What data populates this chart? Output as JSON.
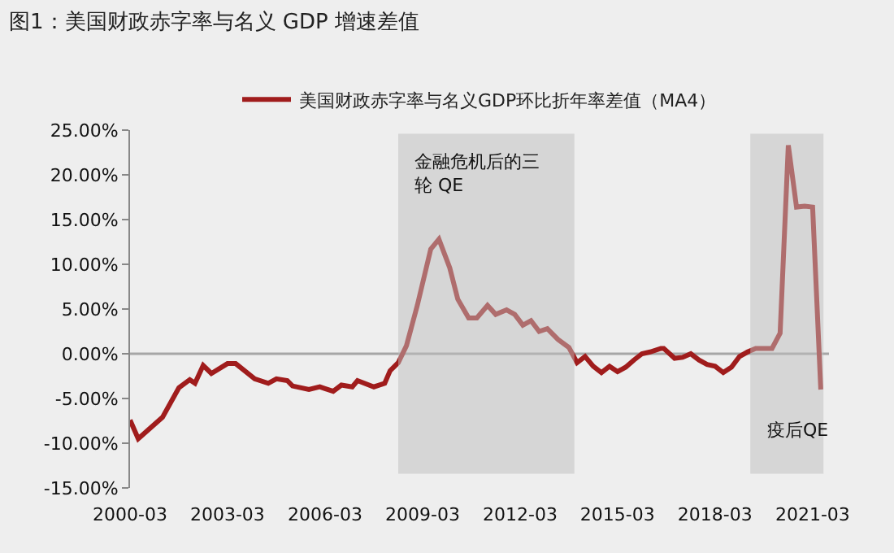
{
  "chart_data": {
    "type": "line",
    "title": "图1：美国财政赤字率与名义 GDP 增速差值",
    "x": [
      "2000-03",
      "2000-06",
      "2001-03",
      "2001-09",
      "2002-01",
      "2002-03",
      "2002-06",
      "2002-09",
      "2003-03",
      "2003-06",
      "2004-01",
      "2004-06",
      "2004-09",
      "2005-01",
      "2005-03",
      "2005-09",
      "2006-01",
      "2006-03",
      "2006-06",
      "2006-09",
      "2007-01",
      "2007-03",
      "2007-09",
      "2008-01",
      "2008-03",
      "2008-06",
      "2008-09",
      "2009-01",
      "2009-06",
      "2009-09",
      "2010-01",
      "2010-04",
      "2010-08",
      "2010-11",
      "2011-03",
      "2011-06",
      "2011-10",
      "2012-01",
      "2012-04",
      "2012-07",
      "2012-10",
      "2013-01",
      "2013-05",
      "2013-09",
      "2013-12",
      "2014-03",
      "2014-06",
      "2014-09",
      "2014-12",
      "2015-03",
      "2015-06",
      "2015-09",
      "2015-12",
      "2016-03",
      "2016-07",
      "2016-08",
      "2016-12",
      "2017-03",
      "2017-06",
      "2017-09",
      "2017-12",
      "2018-03",
      "2018-06",
      "2018-09",
      "2018-12",
      "2019-03",
      "2019-06",
      "2019-12",
      "2020-03",
      "2020-06",
      "2020-09",
      "2020-12",
      "2021-03",
      "2021-06"
    ],
    "series": [
      {
        "name": "美国财政赤字率与名义GDP环比折年率差值（MA4）",
        "color": "#a01c1c",
        "values": [
          -7.4,
          -9.5,
          -7.1,
          -3.8,
          -2.9,
          -3.3,
          -1.3,
          -2.2,
          -1.1,
          -1.1,
          -2.8,
          -3.3,
          -2.8,
          -3.0,
          -3.6,
          -4.0,
          -3.7,
          -3.9,
          -4.2,
          -3.5,
          -3.7,
          -3.0,
          -3.7,
          -3.3,
          -1.9,
          -1.0,
          0.9,
          5.4,
          11.7,
          12.8,
          9.6,
          6.1,
          4.0,
          4.0,
          5.4,
          4.4,
          4.9,
          4.4,
          3.2,
          3.7,
          2.5,
          2.8,
          1.6,
          0.7,
          -1.0,
          -0.3,
          -1.4,
          -2.1,
          -1.4,
          -2.0,
          -1.5,
          -0.7,
          0,
          0.2,
          0.6,
          0.6,
          -0.5,
          -0.4,
          0,
          -0.7,
          -1.2,
          -1.4,
          -2.1,
          -1.5,
          -0.3,
          0.2,
          0.6,
          0.6,
          2.3,
          23.3,
          16.4,
          16.5,
          16.4,
          -4.0
        ]
      }
    ],
    "xlim": [
      "2000-03",
      "2021-09"
    ],
    "xticks": [
      "2000-03",
      "2003-03",
      "2006-03",
      "2009-03",
      "2012-03",
      "2015-03",
      "2018-03",
      "2021-03"
    ],
    "ylim": [
      -15,
      25
    ],
    "yticks": [
      {
        "value": -15,
        "label": "-15.00%"
      },
      {
        "value": -10,
        "label": "-10.00%"
      },
      {
        "value": -5,
        "label": "-5.00%"
      },
      {
        "value": 0,
        "label": "0.00%"
      },
      {
        "value": 5,
        "label": "5.00%"
      },
      {
        "value": 10,
        "label": "10.00%"
      },
      {
        "value": 15,
        "label": "15.00%"
      },
      {
        "value": 20,
        "label": "20.00%"
      },
      {
        "value": 25,
        "label": "25.00%"
      }
    ],
    "bands": [
      {
        "axis": "x",
        "from": "2008-06",
        "to": "2013-11",
        "label": "金融危机后的三轮 QE",
        "color": "#bdbdbd"
      },
      {
        "axis": "x",
        "from": "2019-04",
        "to": "2021-07",
        "label": "疫后QE",
        "color": "#bdbdbd"
      }
    ],
    "ref_lines": [
      {
        "axis": "y",
        "value": 0,
        "color": "#a6a6a6"
      }
    ],
    "grid": false,
    "legend": "top",
    "marker": "none",
    "line_style": "solid"
  }
}
